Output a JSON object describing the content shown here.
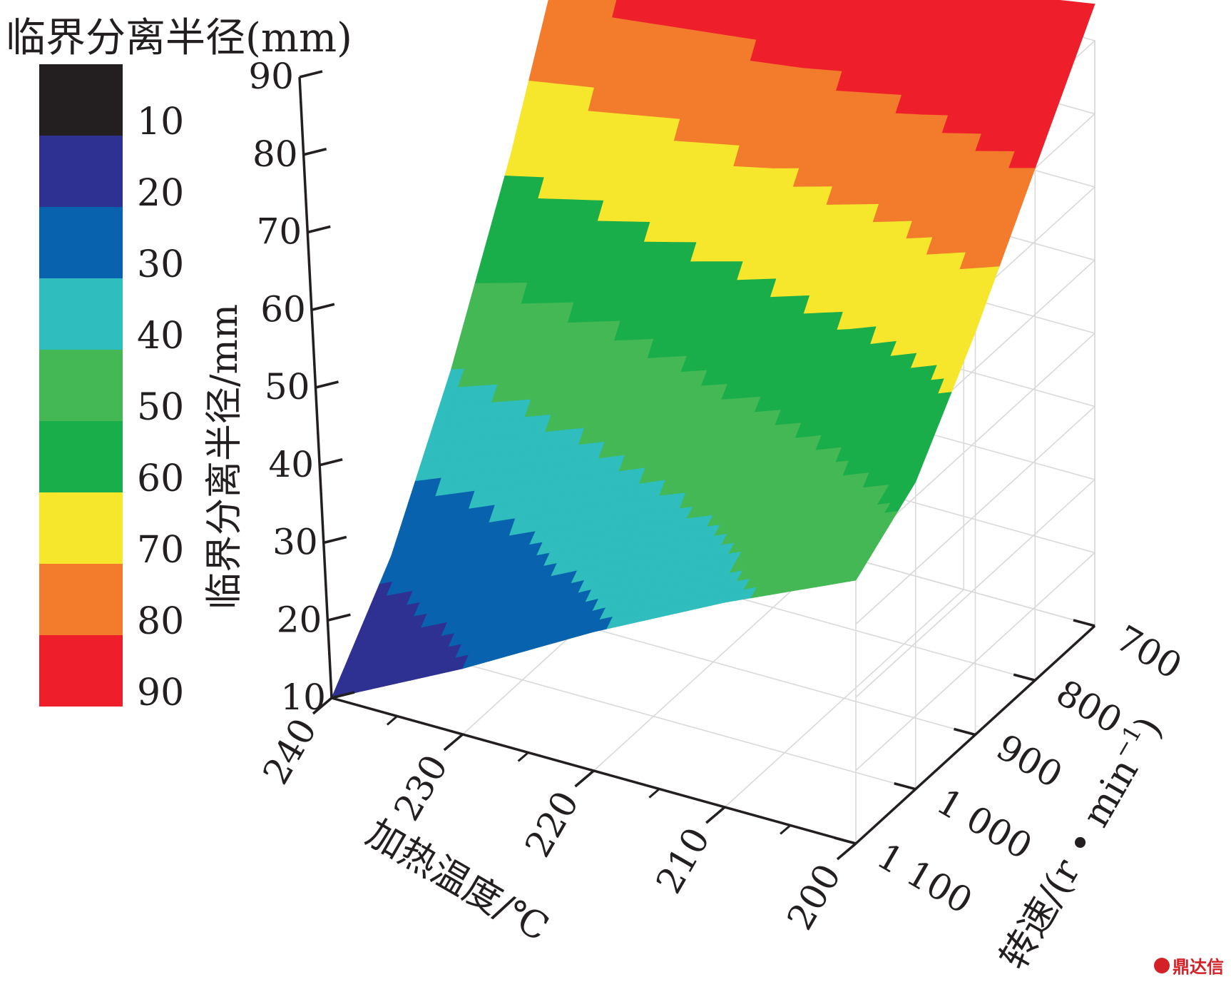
{
  "chart_data": {
    "type": "surface3d",
    "legend_title": "临界分离半径(mm)",
    "zlabel": "临界分离半径/mm",
    "xlabel": "加热温度/℃",
    "ylabel": "转速/(r • min",
    "ylabel_sup": "−1",
    "ylabel_close": ")",
    "x_ticks": [
      "240",
      "230",
      "220",
      "210",
      "200"
    ],
    "y_ticks": [
      "700",
      "800",
      "900",
      "1 000",
      "1 100"
    ],
    "z_ticks": [
      "10",
      "20",
      "30",
      "40",
      "50",
      "60",
      "70",
      "80",
      "90"
    ],
    "x": [
      240,
      230,
      220,
      210,
      200
    ],
    "y": [
      700,
      800,
      900,
      1000,
      1100
    ],
    "z": [
      [
        88,
        89,
        90,
        92,
        95
      ],
      [
        62,
        66,
        70,
        75,
        80
      ],
      [
        40,
        46,
        52,
        58,
        65
      ],
      [
        22,
        30,
        38,
        45,
        52
      ],
      [
        10,
        19,
        29,
        38,
        46
      ]
    ],
    "zlim": [
      10,
      90
    ],
    "legend": {
      "labels": [
        "10",
        "20",
        "30",
        "40",
        "50",
        "60",
        "70",
        "80",
        "90"
      ],
      "colors": [
        "#231f20",
        "#2e3192",
        "#0962ad",
        "#2fbdbd",
        "#44b854",
        "#1aae4a",
        "#f6e72c",
        "#f27b2c",
        "#ee1f2b"
      ]
    },
    "grid": true
  },
  "watermark": {
    "text": "鼎达信"
  }
}
